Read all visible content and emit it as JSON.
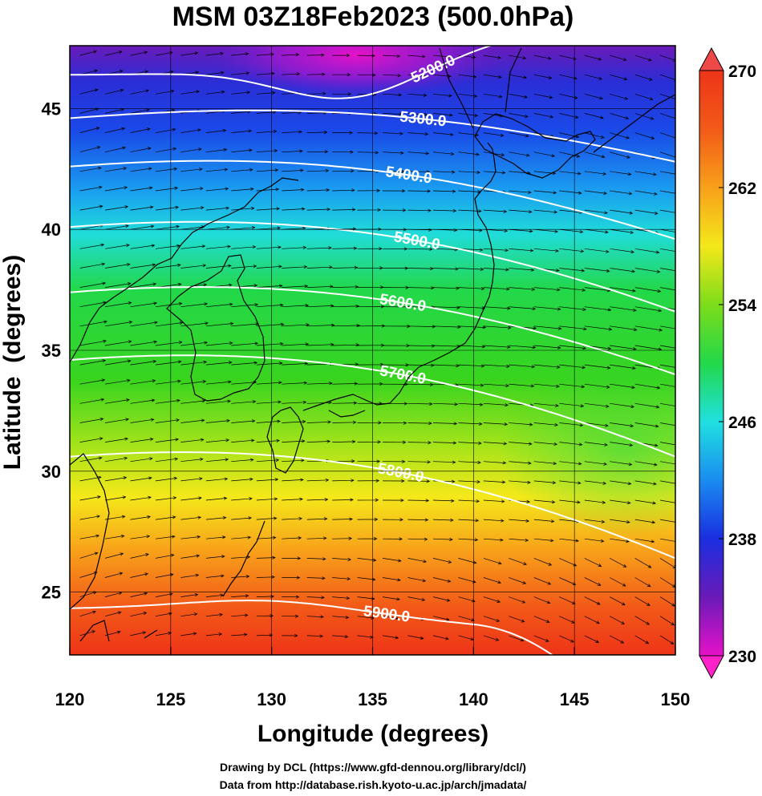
{
  "title": "MSM 03Z18Feb2023 (500.0hPa)",
  "axes": {
    "xlabel": "Longitude (degrees)",
    "ylabel": "Latitude  (degrees)",
    "xlim": [
      120,
      150
    ],
    "ylim": [
      22.4,
      47.6
    ],
    "xticks": [
      "120",
      "125",
      "130",
      "135",
      "140",
      "145",
      "150"
    ],
    "yticks": [
      "25",
      "30",
      "35",
      "40",
      "45"
    ]
  },
  "colorbar": {
    "min": 230,
    "max": 270,
    "tick_labels": [
      "270",
      "262",
      "254",
      "246",
      "238",
      "230"
    ],
    "tick_values": [
      270,
      262,
      254,
      246,
      238,
      230
    ]
  },
  "contours": {
    "labels": [
      "5200.0",
      "5300.0",
      "5400.0",
      "5500.0",
      "5600.0",
      "5700.0",
      "5800.0",
      "5900.0"
    ],
    "values": [
      5200,
      5300,
      5400,
      5500,
      5600,
      5700,
      5800,
      5900
    ],
    "color": "#ffffff"
  },
  "credits": {
    "line1": "Drawing by DCL (https://www.gfd-dennou.org/library/dcl/)",
    "line2": "Data from http://database.rish.kyoto-u.ac.jp/arch/jmadata/"
  },
  "colors": {
    "frame": "#000000",
    "contour": "#ffffff",
    "vector": "#000000",
    "coast": "#000000"
  }
}
